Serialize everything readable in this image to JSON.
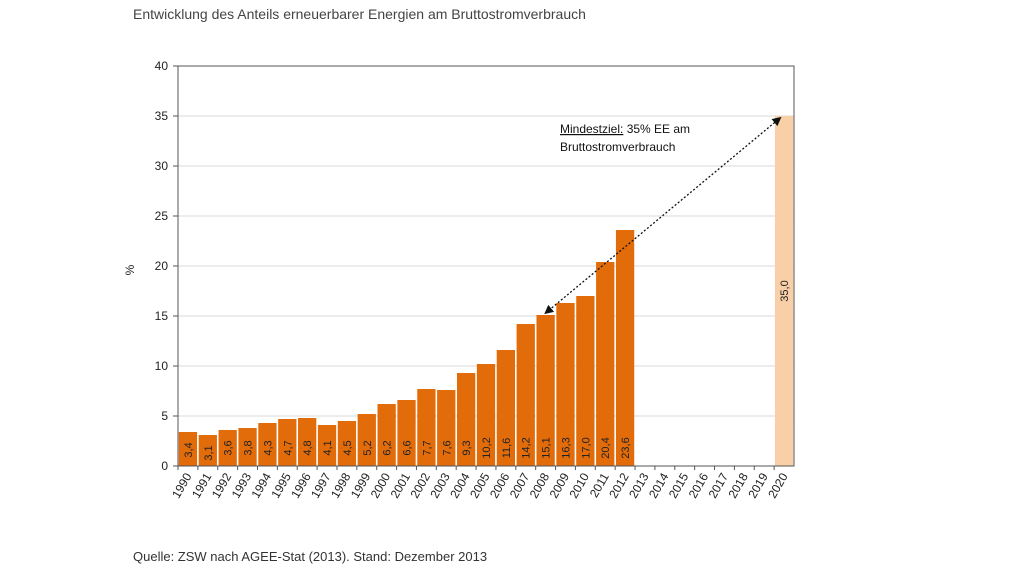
{
  "chart_data": {
    "type": "bar",
    "title": "Entwicklung des Anteils erneuerbarer Energien am Bruttostromverbrauch",
    "ylabel": "%",
    "xlabel": "",
    "ylim": [
      0,
      40
    ],
    "yticks": [
      0,
      5,
      10,
      15,
      20,
      25,
      30,
      35,
      40
    ],
    "grid": true,
    "categories": [
      "1990",
      "1991",
      "1992",
      "1993",
      "1994",
      "1995",
      "1996",
      "1997",
      "1998",
      "1999",
      "2000",
      "2001",
      "2002",
      "2003",
      "2004",
      "2005",
      "2006",
      "2007",
      "2008",
      "2009",
      "2010",
      "2011",
      "2012",
      "2013",
      "2014",
      "2015",
      "2016",
      "2017",
      "2018",
      "2019",
      "2020"
    ],
    "values": [
      3.4,
      3.1,
      3.6,
      3.8,
      4.3,
      4.7,
      4.8,
      4.1,
      4.5,
      5.2,
      6.2,
      6.6,
      7.7,
      7.6,
      9.3,
      10.2,
      11.6,
      14.2,
      15.1,
      16.3,
      17.0,
      20.4,
      23.6,
      null,
      null,
      null,
      null,
      null,
      null,
      null,
      35.0
    ],
    "value_labels": [
      "3,4",
      "3,1",
      "3,6",
      "3,8",
      "4,3",
      "4,7",
      "4,8",
      "4,1",
      "4,5",
      "5,2",
      "6,2",
      "6,6",
      "7,7",
      "7,6",
      "9,3",
      "10,2",
      "11,6",
      "14,2",
      "15,1",
      "16,3",
      "17,0",
      "20,4",
      "23,6",
      "",
      "",
      "",
      "",
      "",
      "",
      "",
      "35,0"
    ],
    "colors": {
      "actual": "#e36c0a",
      "target": "#f9cfa8",
      "grid": "#d9d9d9",
      "axis": "#555555"
    },
    "annotation": {
      "line1_underlined": "Mindestziel:",
      "line1_rest": " 35% EE am",
      "line2": "Bruttostromverbrauch",
      "arrow_from": {
        "x": "2008",
        "y": 15.1
      },
      "arrow_to": {
        "x": "2020",
        "y": 35.0
      }
    },
    "source": "Quelle: ZSW nach AGEE-Stat (2013). Stand: Dezember 2013"
  }
}
